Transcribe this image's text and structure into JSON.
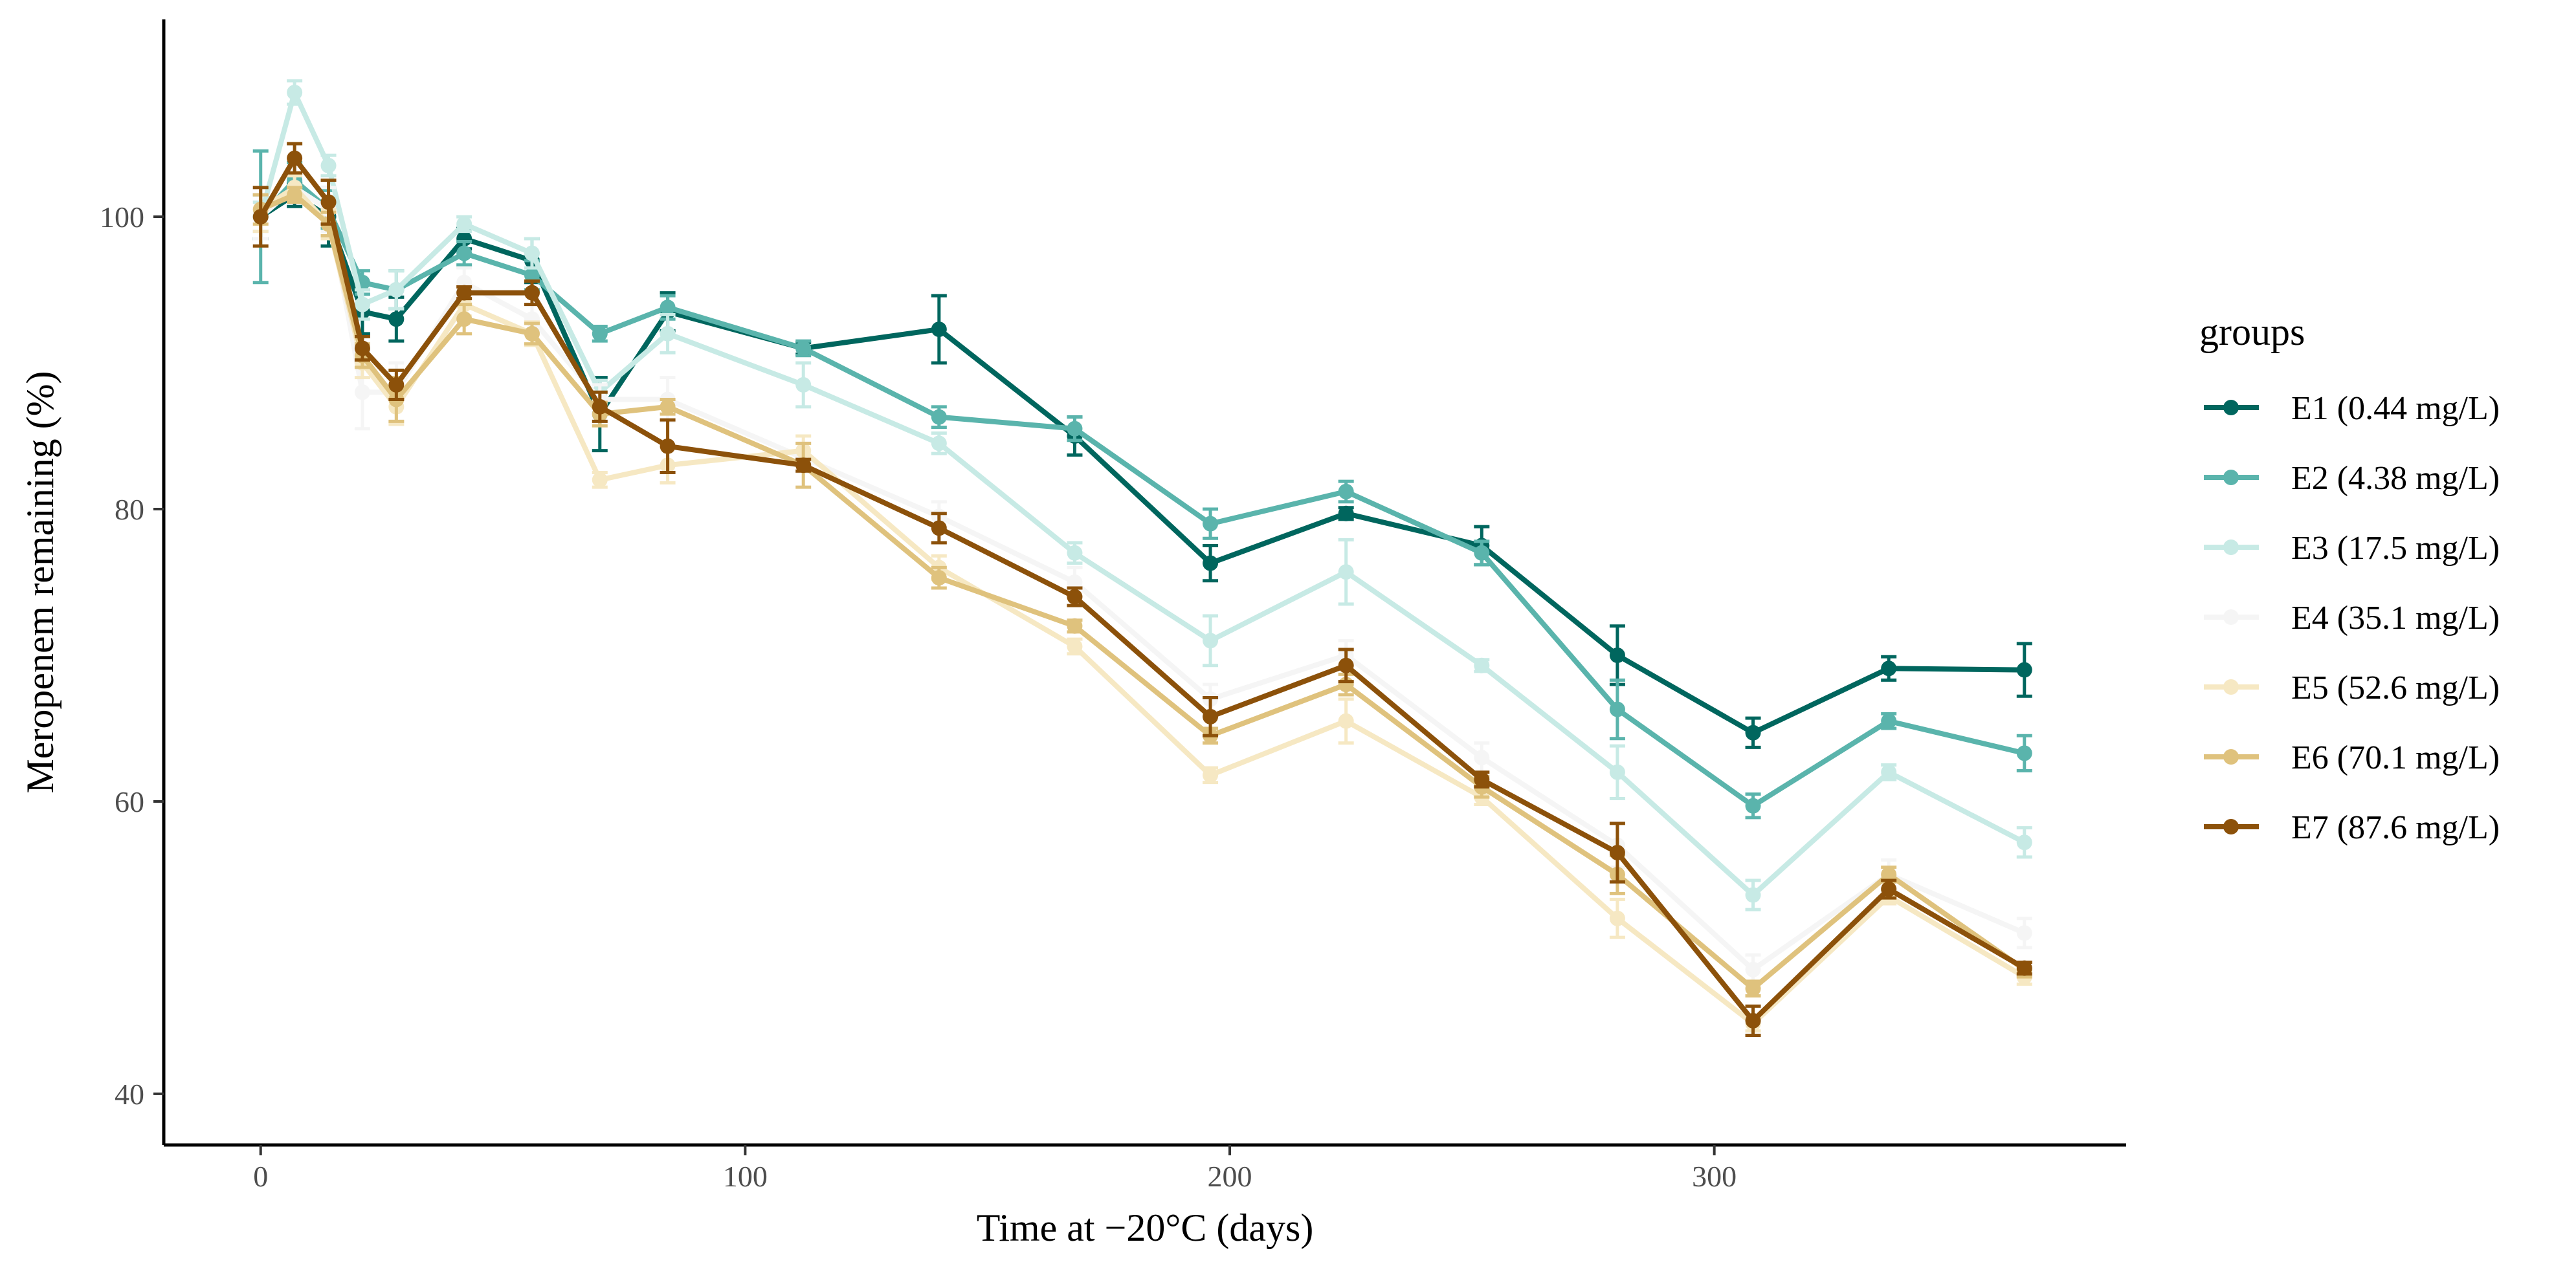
{
  "chart_data": {
    "type": "line",
    "xlabel": "Time at −20°C (days)",
    "ylabel": "Meropenem remaining (%)",
    "xlim": [
      -20,
      385
    ],
    "ylim": [
      36.5,
      113.5
    ],
    "x_ticks": [
      0,
      100,
      200,
      300
    ],
    "y_ticks": [
      40,
      60,
      80,
      100
    ],
    "grid": false,
    "legend": {
      "title": "groups",
      "position": "right"
    },
    "x": [
      0,
      7,
      14,
      21,
      28,
      42,
      56,
      70,
      84,
      112,
      140,
      168,
      196,
      224,
      252,
      280,
      308,
      336,
      364
    ],
    "series": [
      {
        "name": "E1 (0.44 mg/L)",
        "color": "#00665e",
        "values": [
          100.0,
          101.5,
          100.0,
          93.5,
          93.0,
          98.5,
          97.0,
          86.5,
          93.5,
          91.0,
          92.3,
          85.0,
          76.3,
          79.7,
          77.5,
          70.0,
          64.7,
          69.1,
          69.0
        ],
        "errors": [
          1.5,
          0.8,
          2.0,
          1.5,
          1.5,
          0.7,
          1.5,
          2.5,
          1.3,
          0.4,
          2.3,
          1.3,
          1.2,
          0.4,
          1.3,
          2.0,
          1.0,
          0.8,
          1.8
        ]
      },
      {
        "name": "E2 (4.38 mg/L)",
        "color": "#5ab4ac",
        "values": [
          100.0,
          102.5,
          100.5,
          95.5,
          95.0,
          97.5,
          96.0,
          92.0,
          93.8,
          91.0,
          86.3,
          85.5,
          79.0,
          81.2,
          77.0,
          66.3,
          59.7,
          65.5,
          63.3
        ],
        "errors": [
          4.5,
          1.2,
          1.3,
          0.8,
          1.3,
          0.8,
          1.0,
          0.5,
          0.8,
          0.5,
          0.7,
          0.8,
          1.0,
          0.7,
          0.8,
          2.0,
          0.8,
          0.5,
          1.2
        ]
      },
      {
        "name": "E3 (17.5 mg/L)",
        "color": "#c7eae5",
        "values": [
          100.0,
          108.5,
          103.5,
          94.0,
          95.0,
          99.5,
          97.5,
          88.0,
          92.0,
          88.5,
          84.5,
          77.0,
          71.0,
          75.7,
          69.3,
          62.0,
          53.6,
          62.0,
          57.2
        ],
        "errors": [
          1.0,
          0.8,
          0.7,
          1.0,
          1.3,
          0.5,
          1.0,
          0.8,
          1.3,
          1.5,
          0.7,
          0.7,
          1.7,
          2.2,
          0.4,
          1.8,
          1.0,
          0.5,
          1.0
        ]
      },
      {
        "name": "E4 (35.1 mg/L)",
        "color": "#f5f5f5",
        "values": [
          100.0,
          102.0,
          100.5,
          88.0,
          88.0,
          95.5,
          93.0,
          87.5,
          87.5,
          83.5,
          79.5,
          75.0,
          67.0,
          70.0,
          63.0,
          57.0,
          48.5,
          55.0,
          51.0
        ],
        "errors": [
          1.5,
          1.0,
          1.5,
          2.5,
          2.0,
          1.0,
          1.0,
          1.0,
          1.5,
          1.0,
          1.0,
          1.0,
          1.0,
          1.0,
          1.0,
          1.5,
          1.0,
          1.0,
          1.0
        ]
      },
      {
        "name": "E5 (52.6 mg/L)",
        "color": "#f6e8c3",
        "values": [
          100.5,
          102.0,
          99.5,
          90.0,
          87.0,
          94.0,
          92.0,
          82.0,
          83.0,
          84.0,
          76.0,
          70.6,
          61.8,
          65.5,
          60.3,
          52.0,
          44.8,
          53.5,
          48.0
        ],
        "errors": [
          1.5,
          0.8,
          1.0,
          1.0,
          1.2,
          0.8,
          0.8,
          0.5,
          1.2,
          1.0,
          0.8,
          0.5,
          0.5,
          1.5,
          0.5,
          1.3,
          0.5,
          0.5,
          0.5
        ]
      },
      {
        "name": "E6 (70.1 mg/L)",
        "color": "#dfc27d",
        "values": [
          100.5,
          101.5,
          99.5,
          90.5,
          87.5,
          93.0,
          92.0,
          86.5,
          87.0,
          83.0,
          75.3,
          72.0,
          64.5,
          68.0,
          61.0,
          55.0,
          47.2,
          55.0,
          48.5
        ],
        "errors": [
          1.0,
          0.5,
          0.8,
          0.8,
          1.5,
          1.0,
          0.7,
          0.8,
          0.5,
          1.5,
          0.7,
          0.4,
          0.5,
          0.7,
          0.7,
          1.3,
          0.5,
          0.5,
          0.5
        ]
      },
      {
        "name": "E7 (87.6 mg/L)",
        "color": "#8c510a",
        "values": [
          100.0,
          104.0,
          101.0,
          91.0,
          88.5,
          94.8,
          94.8,
          87.0,
          84.3,
          83.0,
          78.7,
          74.0,
          65.8,
          69.3,
          61.5,
          56.5,
          45.0,
          54.0,
          48.6
        ],
        "errors": [
          2.0,
          1.0,
          1.5,
          0.8,
          1.0,
          0.4,
          0.8,
          1.0,
          1.8,
          0.4,
          1.0,
          0.6,
          1.3,
          1.1,
          0.5,
          2.0,
          1.0,
          0.6,
          0.4
        ]
      }
    ]
  }
}
